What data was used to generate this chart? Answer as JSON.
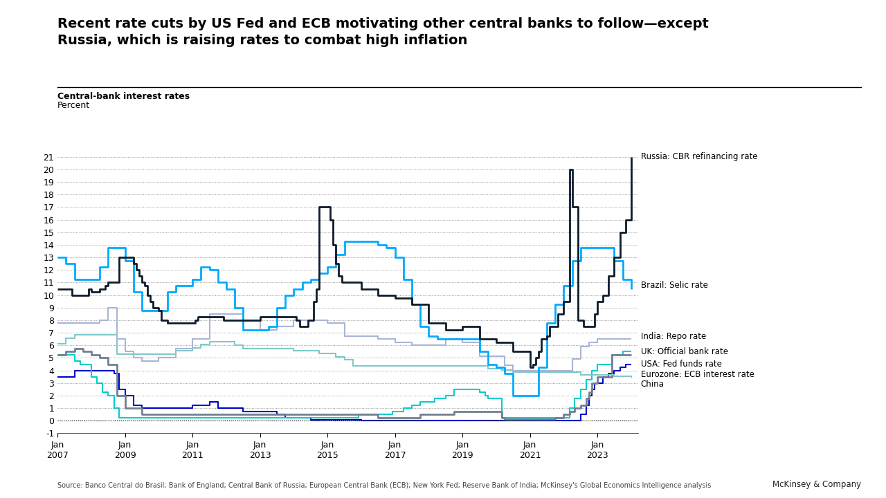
{
  "title": "Recent rate cuts by US Fed and ECB motivating other central banks to follow—except\nRussia, which is raising rates to combat high inflation",
  "subtitle1": "Central-bank interest rates",
  "subtitle2": "Percent",
  "source": "Source: Banco Central do Brasil; Bank of England; Central Bank of Russia; European Central Bank (ECB); New York Fed; Reserve Bank of India; McKinsey's Global Economics Intelligence analysis",
  "attribution": "McKinsey & Company",
  "ylim": [
    -1,
    21
  ],
  "yticks": [
    -1,
    0,
    1,
    2,
    3,
    4,
    5,
    6,
    7,
    8,
    9,
    10,
    11,
    12,
    13,
    14,
    15,
    16,
    17,
    18,
    19,
    20,
    21
  ],
  "xtick_years": [
    2007,
    2009,
    2011,
    2013,
    2015,
    2017,
    2019,
    2021,
    2023
  ],
  "series": {
    "Russia": {
      "color": "#0d1b2a",
      "label": "Russia: CBR refinancing rate",
      "lw": 2.0,
      "dates": [
        2007.0,
        2007.08,
        2007.17,
        2007.25,
        2007.33,
        2007.42,
        2007.5,
        2007.58,
        2007.67,
        2007.75,
        2007.83,
        2007.92,
        2008.0,
        2008.08,
        2008.17,
        2008.25,
        2008.33,
        2008.42,
        2008.5,
        2008.58,
        2008.67,
        2008.75,
        2008.83,
        2008.92,
        2009.0,
        2009.08,
        2009.17,
        2009.25,
        2009.33,
        2009.42,
        2009.5,
        2009.58,
        2009.67,
        2009.75,
        2009.83,
        2009.92,
        2010.0,
        2010.08,
        2010.17,
        2010.25,
        2010.33,
        2010.42,
        2010.5,
        2010.58,
        2010.67,
        2010.75,
        2010.83,
        2010.92,
        2011.0,
        2011.08,
        2011.17,
        2011.25,
        2011.33,
        2011.42,
        2011.5,
        2011.58,
        2011.67,
        2011.75,
        2011.83,
        2011.92,
        2012.0,
        2012.5,
        2013.0,
        2013.5,
        2014.0,
        2014.08,
        2014.17,
        2014.25,
        2014.33,
        2014.42,
        2014.5,
        2014.58,
        2014.67,
        2014.75,
        2014.83,
        2014.92,
        2015.0,
        2015.08,
        2015.17,
        2015.25,
        2015.33,
        2015.42,
        2015.5,
        2015.58,
        2015.67,
        2015.75,
        2015.83,
        2015.92,
        2016.0,
        2016.5,
        2017.0,
        2017.5,
        2018.0,
        2018.5,
        2019.0,
        2019.5,
        2020.0,
        2020.5,
        2021.0,
        2021.08,
        2021.17,
        2021.25,
        2021.33,
        2021.42,
        2021.5,
        2021.58,
        2021.67,
        2021.75,
        2021.83,
        2021.92,
        2022.0,
        2022.17,
        2022.25,
        2022.42,
        2022.58,
        2022.75,
        2022.83,
        2022.92,
        2023.0,
        2023.17,
        2023.33,
        2023.5,
        2023.67,
        2023.83,
        2024.0
      ],
      "values": [
        10.5,
        10.5,
        10.5,
        10.5,
        10.5,
        10.0,
        10.0,
        10.0,
        10.0,
        10.0,
        10.0,
        10.5,
        10.25,
        10.25,
        10.25,
        10.5,
        10.5,
        10.75,
        11.0,
        11.0,
        11.0,
        11.0,
        13.0,
        13.0,
        13.0,
        13.0,
        13.0,
        12.5,
        12.0,
        11.5,
        11.0,
        10.75,
        10.0,
        9.5,
        9.0,
        9.0,
        8.75,
        8.0,
        8.0,
        7.75,
        7.75,
        7.75,
        7.75,
        7.75,
        7.75,
        7.75,
        7.75,
        7.75,
        7.75,
        8.0,
        8.25,
        8.25,
        8.25,
        8.25,
        8.25,
        8.25,
        8.25,
        8.25,
        8.25,
        8.0,
        8.0,
        8.0,
        8.25,
        8.25,
        8.25,
        8.0,
        7.5,
        7.5,
        7.5,
        8.0,
        8.0,
        9.5,
        10.5,
        17.0,
        17.0,
        17.0,
        17.0,
        16.0,
        14.0,
        12.5,
        11.5,
        11.0,
        11.0,
        11.0,
        11.0,
        11.0,
        11.0,
        11.0,
        10.5,
        10.0,
        9.75,
        9.25,
        7.75,
        7.25,
        7.5,
        6.5,
        6.25,
        5.5,
        4.25,
        4.5,
        5.0,
        5.5,
        6.5,
        6.5,
        6.75,
        7.5,
        7.5,
        7.5,
        8.5,
        8.5,
        9.5,
        20.0,
        17.0,
        8.0,
        7.5,
        7.5,
        7.5,
        8.5,
        9.5,
        10.0,
        11.5,
        13.0,
        15.0,
        16.0,
        21.0
      ]
    },
    "Brazil": {
      "color": "#00aaff",
      "label": "Brazil: Selic rate",
      "lw": 2.0,
      "dates": [
        2007.0,
        2007.25,
        2007.5,
        2007.75,
        2008.0,
        2008.25,
        2008.5,
        2008.75,
        2009.0,
        2009.25,
        2009.5,
        2009.75,
        2010.0,
        2010.25,
        2010.5,
        2010.75,
        2011.0,
        2011.25,
        2011.5,
        2011.75,
        2012.0,
        2012.25,
        2012.5,
        2012.75,
        2013.0,
        2013.25,
        2013.5,
        2013.75,
        2014.0,
        2014.25,
        2014.5,
        2014.75,
        2015.0,
        2015.25,
        2015.5,
        2015.75,
        2016.0,
        2016.25,
        2016.5,
        2016.75,
        2017.0,
        2017.25,
        2017.5,
        2017.75,
        2018.0,
        2018.25,
        2018.5,
        2018.75,
        2019.0,
        2019.25,
        2019.5,
        2019.75,
        2020.0,
        2020.25,
        2020.5,
        2020.75,
        2021.0,
        2021.25,
        2021.5,
        2021.75,
        2022.0,
        2022.25,
        2022.5,
        2022.75,
        2023.0,
        2023.25,
        2023.5,
        2023.75,
        2024.0
      ],
      "values": [
        13.0,
        12.5,
        11.25,
        11.25,
        11.25,
        12.25,
        13.75,
        13.75,
        12.75,
        10.25,
        8.75,
        8.75,
        8.75,
        10.25,
        10.75,
        10.75,
        11.25,
        12.25,
        12.0,
        11.0,
        10.5,
        9.0,
        7.25,
        7.25,
        7.25,
        7.5,
        9.0,
        10.0,
        10.5,
        11.0,
        11.25,
        11.75,
        12.25,
        13.25,
        14.25,
        14.25,
        14.25,
        14.25,
        14.0,
        13.75,
        13.0,
        11.25,
        9.25,
        7.5,
        6.75,
        6.5,
        6.5,
        6.5,
        6.5,
        6.5,
        5.5,
        4.5,
        4.25,
        3.75,
        2.0,
        2.0,
        2.0,
        4.25,
        7.75,
        9.25,
        10.75,
        12.75,
        13.75,
        13.75,
        13.75,
        13.75,
        12.75,
        11.25,
        10.5
      ]
    },
    "India": {
      "color": "#aab4d8",
      "label": "India: Repo rate",
      "lw": 1.5,
      "dates": [
        2007.0,
        2007.5,
        2008.0,
        2008.25,
        2008.5,
        2008.75,
        2009.0,
        2009.25,
        2009.5,
        2009.75,
        2010.0,
        2010.5,
        2011.0,
        2011.5,
        2012.0,
        2012.5,
        2013.0,
        2013.5,
        2014.0,
        2014.5,
        2015.0,
        2015.5,
        2016.0,
        2016.5,
        2017.0,
        2017.5,
        2018.0,
        2018.5,
        2019.0,
        2019.5,
        2020.0,
        2020.25,
        2020.5,
        2020.75,
        2021.0,
        2021.5,
        2022.0,
        2022.25,
        2022.5,
        2022.75,
        2023.0,
        2023.5,
        2024.0
      ],
      "values": [
        7.75,
        7.75,
        7.75,
        8.0,
        9.0,
        6.5,
        5.5,
        5.0,
        4.75,
        4.75,
        5.0,
        5.75,
        6.5,
        8.5,
        8.5,
        8.0,
        7.25,
        7.5,
        8.0,
        8.0,
        7.75,
        6.75,
        6.75,
        6.5,
        6.25,
        6.0,
        6.0,
        6.5,
        6.25,
        5.15,
        5.15,
        4.4,
        4.0,
        4.0,
        4.0,
        4.0,
        4.0,
        4.9,
        5.9,
        6.25,
        6.5,
        6.5,
        6.5
      ]
    },
    "UK": {
      "color": "#708090",
      "label": "UK: Official bank rate",
      "lw": 2.0,
      "dates": [
        2007.0,
        2007.25,
        2007.5,
        2007.75,
        2008.0,
        2008.25,
        2008.5,
        2008.75,
        2009.0,
        2009.5,
        2010.0,
        2011.0,
        2012.0,
        2013.0,
        2014.0,
        2015.0,
        2016.0,
        2016.5,
        2017.0,
        2017.75,
        2018.0,
        2018.75,
        2019.0,
        2019.75,
        2020.0,
        2020.17,
        2020.25,
        2021.0,
        2021.75,
        2022.0,
        2022.17,
        2022.33,
        2022.5,
        2022.67,
        2022.75,
        2022.83,
        2023.0,
        2023.42,
        2023.75,
        2024.0
      ],
      "values": [
        5.25,
        5.5,
        5.75,
        5.5,
        5.25,
        5.0,
        4.5,
        2.0,
        1.0,
        0.5,
        0.5,
        0.5,
        0.5,
        0.5,
        0.5,
        0.5,
        0.5,
        0.25,
        0.25,
        0.5,
        0.5,
        0.75,
        0.75,
        0.75,
        0.75,
        0.25,
        0.1,
        0.1,
        0.25,
        0.5,
        0.75,
        1.0,
        1.25,
        1.75,
        2.25,
        3.0,
        3.5,
        5.25,
        5.25,
        5.25
      ]
    },
    "USA": {
      "color": "#00cccc",
      "label": "USA: Fed funds rate",
      "lw": 1.5,
      "dates": [
        2007.0,
        2007.17,
        2007.33,
        2007.5,
        2007.67,
        2007.83,
        2008.0,
        2008.17,
        2008.33,
        2008.5,
        2008.67,
        2008.83,
        2009.0,
        2015.92,
        2016.92,
        2017.25,
        2017.5,
        2017.75,
        2018.17,
        2018.5,
        2018.75,
        2019.5,
        2019.67,
        2019.75,
        2020.17,
        2020.25,
        2021.75,
        2022.17,
        2022.33,
        2022.5,
        2022.67,
        2022.83,
        2023.0,
        2023.42,
        2023.75,
        2024.0
      ],
      "values": [
        5.25,
        5.25,
        5.25,
        4.75,
        4.5,
        4.5,
        3.5,
        3.0,
        2.25,
        2.0,
        1.0,
        0.25,
        0.25,
        0.5,
        0.75,
        1.0,
        1.25,
        1.5,
        1.75,
        2.0,
        2.5,
        2.25,
        2.0,
        1.75,
        0.25,
        0.25,
        0.25,
        1.0,
        1.75,
        2.5,
        3.25,
        4.0,
        4.5,
        5.25,
        5.5,
        5.5
      ]
    },
    "Eurozone": {
      "color": "#0000cd",
      "label": "Eurozone: ECB interest rate",
      "lw": 1.5,
      "dates": [
        2007.0,
        2007.5,
        2007.83,
        2008.0,
        2008.5,
        2008.67,
        2008.83,
        2009.0,
        2009.25,
        2009.5,
        2010.0,
        2010.5,
        2011.0,
        2011.5,
        2011.75,
        2012.0,
        2012.5,
        2012.75,
        2013.0,
        2013.5,
        2013.75,
        2014.0,
        2014.5,
        2014.75,
        2015.0,
        2016.0,
        2022.5,
        2022.67,
        2022.75,
        2022.83,
        2022.92,
        2023.0,
        2023.17,
        2023.33,
        2023.5,
        2023.67,
        2023.83,
        2024.0
      ],
      "values": [
        3.5,
        4.0,
        4.0,
        4.0,
        4.0,
        3.75,
        2.5,
        2.0,
        1.25,
        1.0,
        1.0,
        1.0,
        1.25,
        1.5,
        1.0,
        1.0,
        0.75,
        0.75,
        0.75,
        0.5,
        0.25,
        0.25,
        0.05,
        0.05,
        0.05,
        0.0,
        0.5,
        1.25,
        2.0,
        2.5,
        3.0,
        3.0,
        3.5,
        3.75,
        4.0,
        4.25,
        4.5,
        4.5
      ]
    },
    "China": {
      "color": "#80c8c8",
      "label": "China",
      "lw": 1.5,
      "dates": [
        2007.0,
        2007.25,
        2007.5,
        2007.75,
        2008.0,
        2008.5,
        2008.75,
        2009.0,
        2010.0,
        2010.5,
        2011.0,
        2011.25,
        2011.5,
        2012.0,
        2012.25,
        2012.5,
        2013.0,
        2014.0,
        2014.5,
        2014.75,
        2015.0,
        2015.25,
        2015.5,
        2015.75,
        2016.0,
        2019.75,
        2020.0,
        2020.17,
        2020.5,
        2022.5,
        2022.75,
        2023.0,
        2023.5,
        2024.0
      ],
      "values": [
        6.12,
        6.57,
        6.84,
        6.84,
        6.84,
        6.84,
        5.31,
        5.31,
        5.31,
        5.56,
        5.81,
        6.06,
        6.31,
        6.31,
        6.0,
        5.75,
        5.75,
        5.6,
        5.6,
        5.35,
        5.35,
        5.1,
        4.85,
        4.35,
        4.35,
        4.15,
        4.15,
        4.05,
        3.85,
        3.65,
        3.65,
        3.65,
        3.55,
        3.45
      ]
    }
  }
}
